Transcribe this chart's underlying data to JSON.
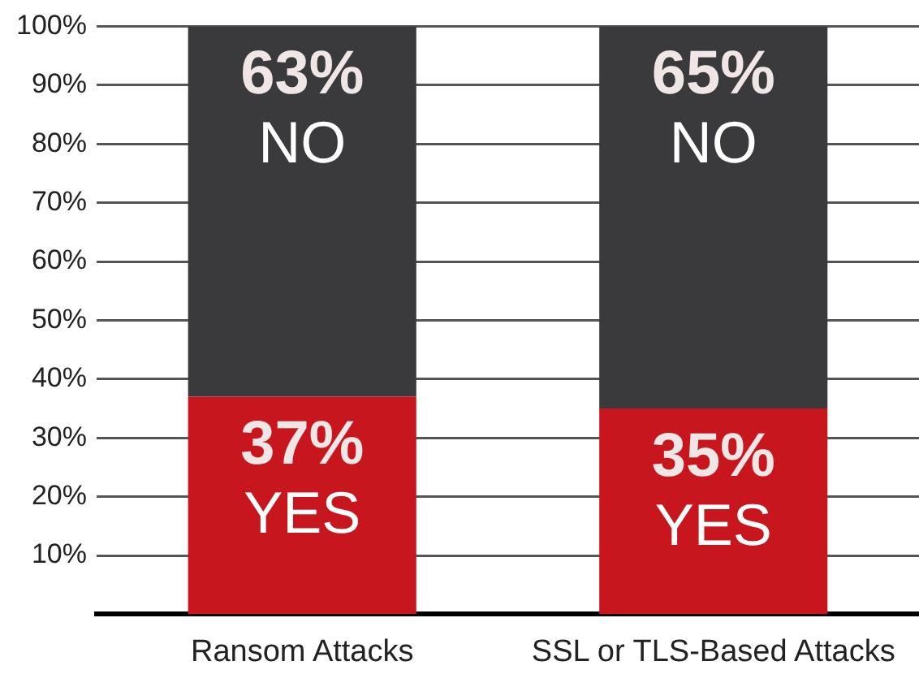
{
  "chart_data": {
    "type": "bar",
    "stacked": true,
    "categories": [
      "Ransom Attacks",
      "SSL or TLS-Based Attacks"
    ],
    "series": [
      {
        "name": "YES",
        "color": "#c8161e",
        "values": [
          37,
          35
        ],
        "value_labels": [
          "37%",
          "35%"
        ]
      },
      {
        "name": "NO",
        "color": "#3a3a3c",
        "values": [
          63,
          65
        ],
        "value_labels": [
          "63%",
          "65%"
        ]
      }
    ],
    "ylim": [
      0,
      100
    ],
    "yticks": [
      {
        "value": 10,
        "label": "10%"
      },
      {
        "value": 20,
        "label": "20%"
      },
      {
        "value": 30,
        "label": "30%"
      },
      {
        "value": 40,
        "label": "40%"
      },
      {
        "value": 50,
        "label": "50%"
      },
      {
        "value": 60,
        "label": "60%"
      },
      {
        "value": 70,
        "label": "70%"
      },
      {
        "value": 80,
        "label": "80%"
      },
      {
        "value": 90,
        "label": "90%"
      },
      {
        "value": 100,
        "label": "100%"
      }
    ],
    "grid": "y",
    "legend": false
  }
}
